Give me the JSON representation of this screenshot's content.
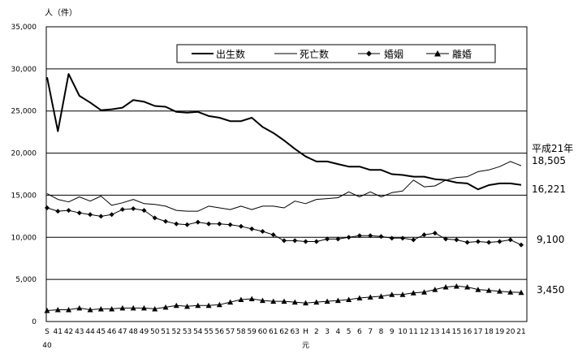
{
  "chart_data": {
    "type": "line",
    "ylabel": "人（件）",
    "ylim": [
      0,
      35000
    ],
    "yticks": [
      "0",
      "5,000",
      "10,000",
      "15,000",
      "20,000",
      "25,000",
      "30,000",
      "35,000"
    ],
    "x": [
      "S40",
      "41",
      "42",
      "43",
      "44",
      "45",
      "46",
      "47",
      "48",
      "49",
      "50",
      "51",
      "52",
      "53",
      "54",
      "55",
      "56",
      "57",
      "58",
      "59",
      "60",
      "61",
      "62",
      "63",
      "H元",
      "2",
      "3",
      "4",
      "5",
      "6",
      "7",
      "8",
      "9",
      "10",
      "11",
      "12",
      "13",
      "14",
      "15",
      "16",
      "17",
      "18",
      "19",
      "20",
      "21"
    ],
    "xtick_top": [
      "S",
      "41",
      "42",
      "43",
      "44",
      "45",
      "46",
      "47",
      "48",
      "49",
      "50",
      "51",
      "52",
      "53",
      "54",
      "55",
      "56",
      "57",
      "58",
      "59",
      "60",
      "61",
      "62",
      "63",
      "H",
      "2",
      "3",
      "4",
      "5",
      "6",
      "7",
      "8",
      "9",
      "10",
      "11",
      "12",
      "13",
      "14",
      "15",
      "16",
      "17",
      "18",
      "19",
      "20",
      "21"
    ],
    "xtick_bottom": [
      "40",
      "",
      "",
      "",
      "",
      "",
      "",
      "",
      "",
      "",
      "",
      "",
      "",
      "",
      "",
      "",
      "",
      "",
      "",
      "",
      "",
      "",
      "",
      "",
      "元",
      "",
      "",
      "",
      "",
      "",
      "",
      "",
      "",
      "",
      "",
      "",
      "",
      "",
      "",
      "",
      "",
      "",
      "",
      "",
      ""
    ],
    "grid": "horizontal",
    "legend_position": "top-right",
    "series": [
      {
        "name": "出生数",
        "marker": "none",
        "width": 2,
        "values": [
          29000,
          22600,
          29400,
          26800,
          26000,
          25100,
          25200,
          25400,
          26300,
          26100,
          25600,
          25500,
          24900,
          24800,
          24900,
          24400,
          24200,
          23800,
          23800,
          24200,
          23100,
          22400,
          21500,
          20500,
          19600,
          19000,
          19000,
          18700,
          18400,
          18400,
          18000,
          18000,
          17500,
          17400,
          17200,
          17200,
          16900,
          16800,
          16500,
          16400,
          15700,
          16200,
          16400,
          16400,
          16221
        ]
      },
      {
        "name": "死亡数",
        "marker": "none",
        "width": 1,
        "values": [
          15200,
          14500,
          14200,
          14800,
          14300,
          14900,
          13800,
          14100,
          14500,
          14000,
          13900,
          13700,
          13200,
          13100,
          13100,
          13700,
          13500,
          13300,
          13700,
          13300,
          13700,
          13700,
          13500,
          14300,
          14000,
          14500,
          14600,
          14700,
          15400,
          14800,
          15400,
          14800,
          15300,
          15500,
          16800,
          16000,
          16100,
          16800,
          17100,
          17200,
          17800,
          18000,
          18400,
          19000,
          18505
        ]
      },
      {
        "name": "婚姻",
        "marker": "diamond",
        "width": 1,
        "values": [
          13500,
          13100,
          13200,
          12900,
          12700,
          12500,
          12700,
          13300,
          13400,
          13200,
          12300,
          11900,
          11600,
          11500,
          11800,
          11600,
          11600,
          11500,
          11300,
          11000,
          10700,
          10300,
          9600,
          9600,
          9500,
          9500,
          9800,
          9800,
          10000,
          10200,
          10200,
          10100,
          9900,
          9900,
          9700,
          10300,
          10500,
          9800,
          9700,
          9400,
          9500,
          9400,
          9500,
          9700,
          9100
        ]
      },
      {
        "name": "離婚",
        "marker": "triangle",
        "width": 1,
        "values": [
          1300,
          1400,
          1400,
          1600,
          1400,
          1500,
          1500,
          1600,
          1600,
          1600,
          1500,
          1700,
          1900,
          1800,
          1900,
          1900,
          2000,
          2300,
          2600,
          2700,
          2500,
          2400,
          2400,
          2300,
          2200,
          2300,
          2400,
          2500,
          2600,
          2800,
          2900,
          3000,
          3200,
          3200,
          3400,
          3500,
          3800,
          4100,
          4200,
          4100,
          3800,
          3700,
          3600,
          3500,
          3450
        ]
      }
    ],
    "annotations": {
      "year_label": "平成21年",
      "end_labels": [
        "18,505",
        "16,221",
        "9,100",
        "3,450"
      ]
    }
  }
}
